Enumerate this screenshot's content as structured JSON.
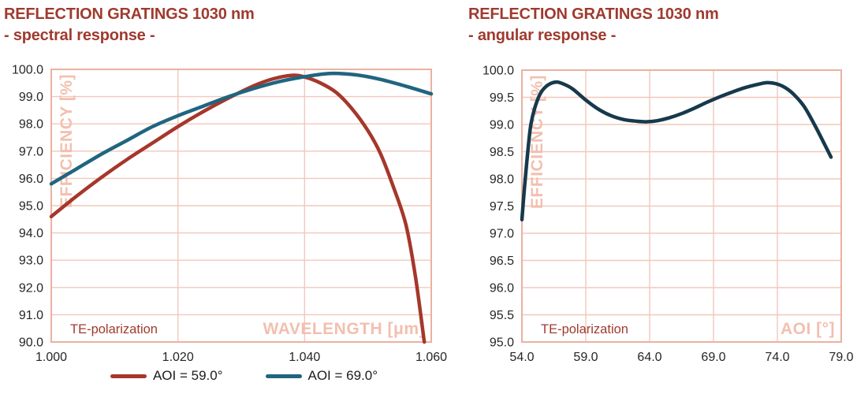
{
  "colors": {
    "title": "#9F3A2E",
    "grid": "#F2C8BB",
    "border": "#EBB1A1",
    "axis_label": "#F2BFAF",
    "annotation": "#9F3A2E",
    "tick_text": "#262626",
    "background": "#FFFFFF"
  },
  "chart_data": [
    {
      "type": "line",
      "title": "REFLECTION GRATINGS 1030 nm",
      "subtitle": "- spectral response -",
      "xlabel": "WAVELENGTH [μm]",
      "ylabel": "EFFICIENCY [%]",
      "annotation": "TE-polarization",
      "xlim": [
        1.0,
        1.06
      ],
      "ylim": [
        90.0,
        100.0
      ],
      "xticks": [
        1.0,
        1.02,
        1.04,
        1.06
      ],
      "xtick_labels": [
        "1.000",
        "1.020",
        "1.040",
        "1.060"
      ],
      "yticks": [
        90,
        91,
        92,
        93,
        94,
        95,
        96,
        97,
        98,
        99,
        100
      ],
      "ytick_labels": [
        "90.0",
        "91.0",
        "92.0",
        "93.0",
        "94.0",
        "95.0",
        "96.0",
        "97.0",
        "98.0",
        "99.0",
        "100.0"
      ],
      "grid": true,
      "legend_position": "bottom",
      "series": [
        {
          "name": "AOI = 59.0°",
          "color": "#A5372B",
          "x": [
            1.0,
            1.004,
            1.008,
            1.012,
            1.016,
            1.02,
            1.024,
            1.028,
            1.032,
            1.035,
            1.038,
            1.04,
            1.0425,
            1.045,
            1.0475,
            1.05,
            1.052,
            1.054,
            1.056,
            1.0575,
            1.0589
          ],
          "y": [
            94.6,
            95.35,
            96.05,
            96.7,
            97.3,
            97.9,
            98.45,
            98.95,
            99.4,
            99.65,
            99.78,
            99.72,
            99.5,
            99.15,
            98.55,
            97.75,
            96.9,
            95.7,
            94.3,
            92.4,
            90.0
          ]
        },
        {
          "name": "AOI = 69.0°",
          "color": "#206580",
          "x": [
            1.0,
            1.004,
            1.008,
            1.012,
            1.016,
            1.02,
            1.024,
            1.028,
            1.032,
            1.036,
            1.04,
            1.044,
            1.048,
            1.052,
            1.056,
            1.06
          ],
          "y": [
            95.8,
            96.35,
            96.9,
            97.4,
            97.9,
            98.3,
            98.65,
            99.0,
            99.3,
            99.55,
            99.73,
            99.85,
            99.8,
            99.63,
            99.38,
            99.1
          ]
        }
      ]
    },
    {
      "type": "line",
      "title": "REFLECTION GRATINGS 1030 nm",
      "subtitle": "- angular response -",
      "xlabel": "AOI [°]",
      "ylabel": "EFFICIENCY [%]",
      "annotation": "TE-polarization",
      "xlim": [
        54.0,
        79.0
      ],
      "ylim": [
        95.0,
        100.0
      ],
      "xticks": [
        54,
        59,
        64,
        69,
        74,
        79
      ],
      "xtick_labels": [
        "54.0",
        "59.0",
        "64.0",
        "69.0",
        "74.0",
        "79.0"
      ],
      "yticks": [
        95,
        95.5,
        96,
        96.5,
        97,
        97.5,
        98,
        98.5,
        99,
        99.5,
        100
      ],
      "ytick_labels": [
        "95.0",
        "95.5",
        "96.0",
        "96.5",
        "97.0",
        "97.5",
        "98.0",
        "98.5",
        "99.0",
        "99.5",
        "100.0"
      ],
      "grid": true,
      "legend_position": "none",
      "series": [
        {
          "name": "TE",
          "color": "#17394B",
          "x": [
            54.0,
            54.15,
            54.3,
            54.5,
            54.7,
            55.0,
            55.4,
            55.8,
            56.3,
            56.8,
            57.4,
            58.0,
            59.0,
            60.0,
            61.0,
            62.0,
            63.0,
            63.8,
            64.6,
            65.5,
            66.5,
            67.5,
            68.5,
            69.5,
            70.5,
            71.5,
            72.5,
            73.2,
            73.9,
            74.6,
            75.3,
            76.1,
            76.9,
            77.6,
            78.2
          ],
          "y": [
            97.25,
            97.7,
            98.1,
            98.6,
            99.0,
            99.3,
            99.55,
            99.68,
            99.76,
            99.78,
            99.73,
            99.65,
            99.45,
            99.28,
            99.16,
            99.09,
            99.06,
            99.05,
            99.07,
            99.12,
            99.2,
            99.3,
            99.41,
            99.51,
            99.6,
            99.68,
            99.74,
            99.77,
            99.75,
            99.68,
            99.55,
            99.33,
            99.0,
            98.68,
            98.4
          ]
        }
      ]
    }
  ]
}
